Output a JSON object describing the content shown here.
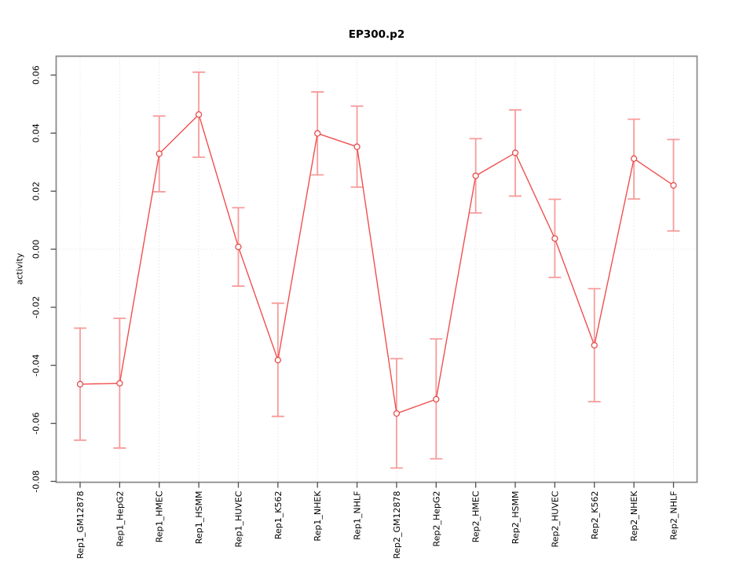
{
  "page": {
    "title": "EP300.p2"
  },
  "chart_data": {
    "type": "line",
    "title": "EP300.p2",
    "xlabel": "",
    "ylabel": "activity",
    "legend_position": "none",
    "grid": "dotted vertical line at every category; dotted horizontal line at y=0",
    "categories": [
      "Rep1_GM12878",
      "Rep1_HepG2",
      "Rep1_HMEC",
      "Rep1_HSMM",
      "Rep1_HUVEC",
      "Rep1_K562",
      "Rep1_NHEK",
      "Rep1_NHLF",
      "Rep2_GM12878",
      "Rep2_HepG2",
      "Rep2_HMEC",
      "Rep2_HSMM",
      "Rep2_HUVEC",
      "Rep2_K562",
      "Rep2_NHEK",
      "Rep2_NHLF"
    ],
    "series": [
      {
        "name": "EP300.p2 activity",
        "values": [
          -0.0465,
          -0.0462,
          0.0329,
          0.0464,
          0.0008,
          -0.0382,
          0.0399,
          0.0353,
          -0.0566,
          -0.0517,
          0.0253,
          0.0332,
          0.0037,
          -0.0331,
          0.0312,
          0.022
        ],
        "ci_high": [
          -0.0272,
          -0.0238,
          0.0459,
          0.061,
          0.0143,
          -0.0186,
          0.0542,
          0.0493,
          -0.0377,
          -0.0309,
          0.0381,
          0.048,
          0.0172,
          -0.0136,
          0.0448,
          0.0378
        ],
        "ci_low": [
          -0.0658,
          -0.0685,
          0.0198,
          0.0317,
          -0.0127,
          -0.0576,
          0.0256,
          0.0214,
          -0.0754,
          -0.0722,
          0.0125,
          0.0183,
          -0.0097,
          -0.0525,
          0.0173,
          0.0063
        ]
      }
    ],
    "ylim": [
      -0.0803,
      0.0665
    ],
    "yticks": [
      -0.08,
      -0.06,
      -0.04,
      -0.02,
      0.0,
      0.02,
      0.04,
      0.06
    ],
    "ytick_labels": [
      "-0.08",
      "-0.06",
      "-0.04",
      "-0.02",
      "0.00",
      "0.02",
      "0.04",
      "0.06"
    ],
    "zero_line": 0.0,
    "colors": {
      "line": "#f04f4f",
      "error_bar": "#f79b9b",
      "point_stroke": "#e84c4c",
      "point_fill": "#ffffff",
      "frame": "#8c8c8c",
      "tick": "#4d4d4d",
      "grid": "#d9d9d9",
      "text": "#000000"
    }
  }
}
